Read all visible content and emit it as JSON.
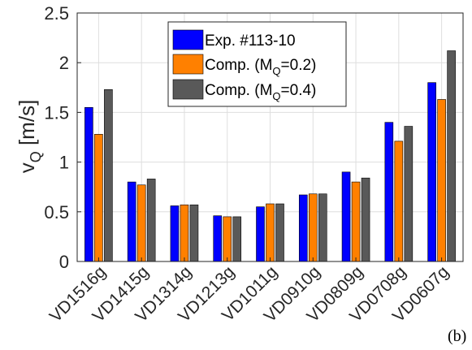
{
  "chart_data": {
    "type": "bar",
    "categories": [
      "VD1516g",
      "VD1415g",
      "VD1314g",
      "VD1213g",
      "VD1011g",
      "VD0910g",
      "VD0809g",
      "VD0708g",
      "VD0607g"
    ],
    "series": [
      {
        "name": "Exp. #113-10",
        "color": "#0000ff",
        "values": [
          1.55,
          0.8,
          0.56,
          0.46,
          0.55,
          0.67,
          0.9,
          1.4,
          1.8
        ]
      },
      {
        "name_parts": [
          "Comp. (M",
          "Q",
          "=0.2)"
        ],
        "color": "#ff8000",
        "values": [
          1.28,
          0.77,
          0.57,
          0.45,
          0.58,
          0.68,
          0.8,
          1.21,
          1.63
        ]
      },
      {
        "name_parts": [
          "Comp. (M",
          "Q",
          "=0.4)"
        ],
        "color": "#595959",
        "values": [
          1.73,
          0.83,
          0.57,
          0.45,
          0.58,
          0.68,
          0.84,
          1.36,
          2.12
        ]
      }
    ],
    "ylabel_parts": [
      "v",
      "Q",
      " [m/s]"
    ],
    "ylim": [
      0,
      2.5
    ],
    "yticks": [
      "0",
      "0.5",
      "1",
      "1.5",
      "2",
      "2.5"
    ],
    "grid": true,
    "legend_position": "top-center",
    "panel_label": "(b)"
  }
}
